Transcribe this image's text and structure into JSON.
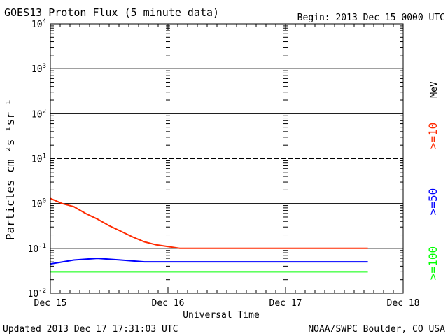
{
  "chart_data": {
    "type": "line",
    "title": "GOES13 Proton Flux (5 minute data)",
    "subtitle": "Begin: 2013 Dec 15 0000 UTC",
    "xlabel": "Universal Time",
    "ylabel": "Particles cm⁻²s⁻¹sr⁻¹",
    "y_scale": "log",
    "ylim": [
      0.01,
      10000
    ],
    "yticks": [
      {
        "base": "10",
        "exp": "-2"
      },
      {
        "base": "10",
        "exp": "-1"
      },
      {
        "base": "10",
        "exp": "0"
      },
      {
        "base": "10",
        "exp": "1"
      },
      {
        "base": "10",
        "exp": "2"
      },
      {
        "base": "10",
        "exp": "3"
      },
      {
        "base": "10",
        "exp": "4"
      }
    ],
    "xlim_days": [
      0,
      3
    ],
    "xticks": [
      "Dec 15",
      "Dec 16",
      "Dec 17",
      "Dec 18"
    ],
    "reference_lines": [
      {
        "value": 1000,
        "style": "solid"
      },
      {
        "value": 100,
        "style": "solid"
      },
      {
        "value": 10,
        "style": "dashed"
      },
      {
        "value": 1,
        "style": "solid"
      },
      {
        "value": 0.1,
        "style": "solid"
      }
    ],
    "unit_label": "MeV",
    "series": [
      {
        "name": ">=10",
        "color": "#ff2a00",
        "x_days": [
          0.0,
          0.1,
          0.2,
          0.3,
          0.4,
          0.5,
          0.6,
          0.7,
          0.8,
          0.9,
          1.0,
          1.1,
          1.2,
          1.3,
          1.4,
          1.5,
          1.6,
          1.7,
          1.8,
          1.9,
          2.0,
          2.1,
          2.2,
          2.3,
          2.4,
          2.5,
          2.6,
          2.7
        ],
        "values": [
          1.3,
          1.0,
          0.85,
          0.6,
          0.45,
          0.32,
          0.24,
          0.18,
          0.14,
          0.12,
          0.11,
          0.1,
          0.1,
          0.1,
          0.1,
          0.1,
          0.1,
          0.1,
          0.1,
          0.1,
          0.1,
          0.1,
          0.1,
          0.1,
          0.1,
          0.1,
          0.1,
          0.1
        ]
      },
      {
        "name": ">=50",
        "color": "#0000ff",
        "x_days": [
          0.0,
          0.2,
          0.4,
          0.6,
          0.8,
          1.0,
          1.2,
          1.4,
          1.6,
          1.8,
          2.0,
          2.2,
          2.4,
          2.6,
          2.7
        ],
        "values": [
          0.045,
          0.055,
          0.06,
          0.055,
          0.05,
          0.05,
          0.05,
          0.05,
          0.05,
          0.05,
          0.05,
          0.05,
          0.05,
          0.05,
          0.05
        ]
      },
      {
        "name": ">=100",
        "color": "#00ff00",
        "x_days": [
          0.0,
          0.2,
          0.4,
          0.6,
          0.8,
          1.0,
          1.2,
          1.4,
          1.6,
          1.8,
          2.0,
          2.2,
          2.4,
          2.6,
          2.7
        ],
        "values": [
          0.03,
          0.03,
          0.03,
          0.03,
          0.03,
          0.03,
          0.03,
          0.03,
          0.03,
          0.03,
          0.03,
          0.03,
          0.03,
          0.03,
          0.03
        ]
      }
    ]
  },
  "footer": {
    "updated": "Updated 2013 Dec 17 17:31:03 UTC",
    "credit": "NOAA/SWPC Boulder, CO USA"
  }
}
